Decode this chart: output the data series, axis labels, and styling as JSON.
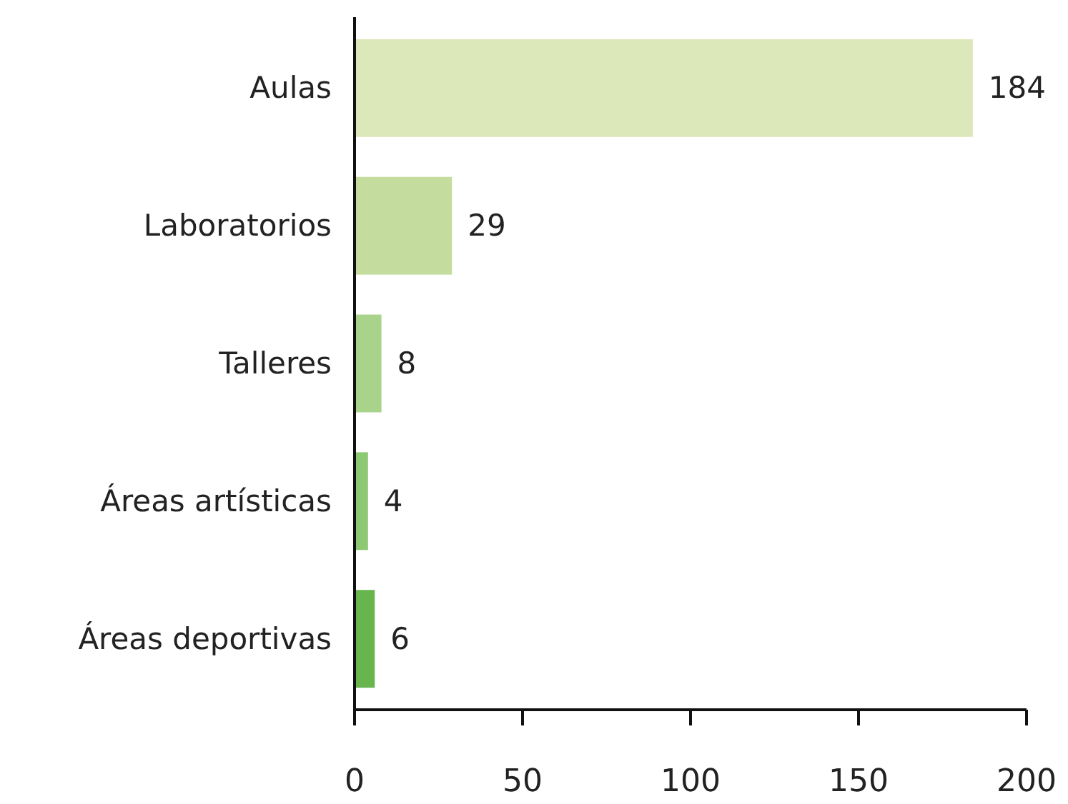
{
  "chart_data": {
    "type": "bar",
    "orientation": "horizontal",
    "categories": [
      "Aulas",
      "Laboratorios",
      "Talleres",
      "Áreas artísticas",
      "Áreas deportivas"
    ],
    "values": [
      184,
      29,
      8,
      4,
      6
    ],
    "colors": [
      "#dce8b9",
      "#c4dd9f",
      "#a9d38b",
      "#8dc873",
      "#68b54e"
    ],
    "xlim": [
      0,
      200
    ],
    "xticks": [
      0,
      50,
      100,
      150,
      200
    ],
    "data_labels": true,
    "grid": false
  }
}
